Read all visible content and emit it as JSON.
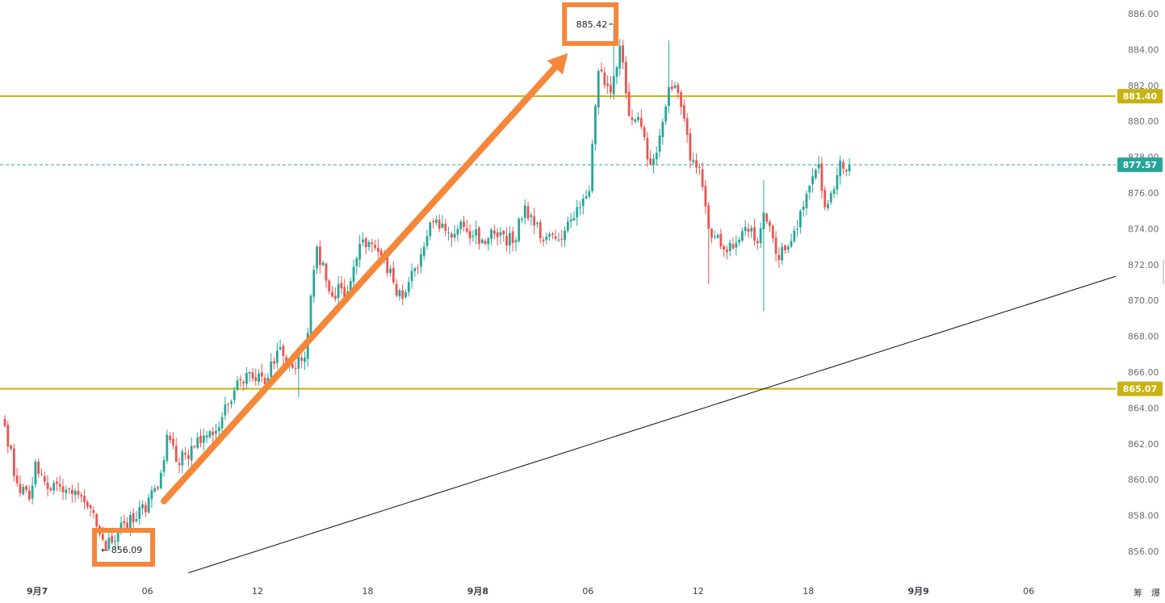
{
  "chart_data": {
    "type": "candlestick",
    "y_axis": {
      "min": 855,
      "max": 886.5,
      "ticks": [
        "886.00",
        "884.00",
        "882.00",
        "880.00",
        "878.00",
        "876.00",
        "874.00",
        "872.00",
        "870.00",
        "868.00",
        "866.00",
        "864.00",
        "862.00",
        "860.00",
        "858.00",
        "856.00"
      ]
    },
    "x_axis": {
      "ticks": [
        {
          "label": "9月7",
          "pos": 4,
          "bold": true
        },
        {
          "label": "06",
          "pos": 40,
          "bold": false
        },
        {
          "label": "12",
          "pos": 76,
          "bold": false
        },
        {
          "label": "18",
          "pos": 112,
          "bold": false
        },
        {
          "label": "9月8",
          "pos": 148,
          "bold": true
        },
        {
          "label": "06",
          "pos": 184,
          "bold": false
        },
        {
          "label": "12",
          "pos": 220,
          "bold": false
        },
        {
          "label": "18",
          "pos": 256,
          "bold": false
        },
        {
          "label": "9月9",
          "pos": 292,
          "bold": true
        },
        {
          "label": "06",
          "pos": 328,
          "bold": false
        }
      ],
      "corner_labels": [
        "筹",
        "爆"
      ]
    },
    "colors": {
      "up": "#26a69a",
      "down": "#ef5350",
      "horizontal_line": "#c9b213",
      "current_price": "#26a69a",
      "callout": "#f5873a",
      "trend_line": "#111111"
    },
    "horizontal_lines": [
      {
        "value": 881.4,
        "label": "881.40"
      },
      {
        "value": 865.07,
        "label": "865.07"
      }
    ],
    "current_price": {
      "value": 877.57,
      "label": "877.57"
    },
    "callouts": [
      {
        "label": "885.42",
        "value": 885.42,
        "index": 199
      },
      {
        "label": "856.09",
        "value": 856.09,
        "index": 33
      }
    ],
    "arrow": {
      "from_index": 52,
      "from_value": 858.8,
      "to_index": 184,
      "to_value": 883.8
    },
    "trend_line": {
      "from_index": 60,
      "from_value": 854.8,
      "to_index": 364,
      "to_value": 871.4
    },
    "anchors": [
      [
        0,
        863.0
      ],
      [
        4,
        859.8
      ],
      [
        8,
        858.9
      ],
      [
        10,
        861.0
      ],
      [
        15,
        859.4
      ],
      [
        22,
        859.2
      ],
      [
        28,
        858.4
      ],
      [
        33,
        856.1
      ],
      [
        38,
        857.6
      ],
      [
        43,
        857.8
      ],
      [
        50,
        859.5
      ],
      [
        53,
        862.5
      ],
      [
        56,
        861.0
      ],
      [
        62,
        861.8
      ],
      [
        68,
        862.5
      ],
      [
        72,
        864.2
      ],
      [
        80,
        866.0
      ],
      [
        86,
        865.7
      ],
      [
        89,
        867.2
      ],
      [
        93,
        866.4
      ],
      [
        98,
        866.8
      ],
      [
        102,
        873.0
      ],
      [
        106,
        870.5
      ],
      [
        112,
        870.5
      ],
      [
        117,
        873.4
      ],
      [
        123,
        872.5
      ],
      [
        127,
        871.0
      ],
      [
        130,
        870.1
      ],
      [
        134,
        871.8
      ],
      [
        140,
        874.4
      ],
      [
        146,
        873.5
      ],
      [
        150,
        874.1
      ],
      [
        156,
        873.4
      ],
      [
        162,
        873.8
      ],
      [
        166,
        873.2
      ],
      [
        170,
        875.3
      ],
      [
        176,
        873.3
      ],
      [
        181,
        873.4
      ],
      [
        186,
        874.6
      ],
      [
        191,
        876.1
      ],
      [
        194,
        882.8
      ],
      [
        198,
        881.6
      ],
      [
        201,
        884.2
      ],
      [
        204,
        880.3
      ],
      [
        208,
        879.7
      ],
      [
        211,
        877.6
      ],
      [
        214,
        879.2
      ],
      [
        217,
        881.9
      ],
      [
        219,
        882.0
      ],
      [
        221,
        880.8
      ],
      [
        224,
        877.8
      ],
      [
        227,
        877.4
      ],
      [
        230,
        874.0
      ],
      [
        234,
        873.0
      ],
      [
        238,
        872.9
      ],
      [
        242,
        874.1
      ],
      [
        246,
        873.2
      ],
      [
        248,
        874.9
      ],
      [
        252,
        872.6
      ],
      [
        255,
        872.8
      ],
      [
        259,
        874.0
      ],
      [
        263,
        876.4
      ],
      [
        266,
        877.6
      ],
      [
        268,
        875.2
      ],
      [
        271,
        876.2
      ],
      [
        273,
        877.8
      ],
      [
        275,
        877.2
      ],
      [
        276,
        877.57
      ]
    ]
  }
}
